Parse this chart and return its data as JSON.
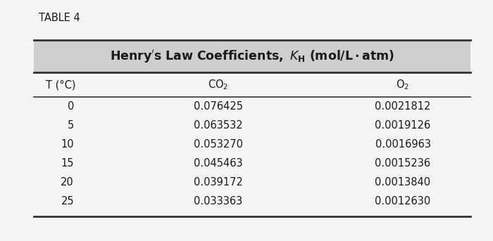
{
  "table_label": "TABLE 4",
  "col_headers": [
    "T (°C)",
    "CO$_2$",
    "O$_2$"
  ],
  "rows": [
    [
      "0",
      "0.076425",
      "0.0021812"
    ],
    [
      "5",
      "0.063532",
      "0.0019126"
    ],
    [
      "10",
      "0.053270",
      "0.0016963"
    ],
    [
      "15",
      "0.045463",
      "0.0015236"
    ],
    [
      "20",
      "0.039172",
      "0.0013840"
    ],
    [
      "25",
      "0.033363",
      "0.0012630"
    ]
  ],
  "header_bg": "#cecece",
  "outer_bg": "#f5f5f5",
  "text_color": "#1a1a1a",
  "line_color": "#333333",
  "table_label_fontsize": 10.5,
  "header_fontsize": 12.5,
  "col_header_fontsize": 10.5,
  "data_fontsize": 10.5
}
